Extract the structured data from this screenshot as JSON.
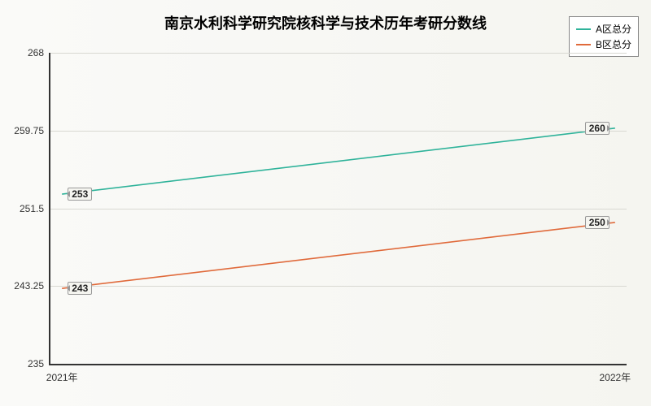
{
  "chart": {
    "type": "line",
    "title": "南京水利科学研究院核科学与技术历年考研分数线",
    "title_fontsize": 18,
    "background_gradient": [
      "#fafaf8",
      "#f5f5f0"
    ],
    "plot_border_color": "#333333",
    "grid_color": "#d8d8d2",
    "x": {
      "categories": [
        "2021年",
        "2022年"
      ],
      "positions_pct": [
        2,
        98
      ]
    },
    "y": {
      "min": 235,
      "max": 268,
      "ticks": [
        235,
        243.25,
        251.5,
        259.75,
        268
      ],
      "tick_labels": [
        "235",
        "243.25",
        "251.5",
        "259.75",
        "268"
      ]
    },
    "series": [
      {
        "name": "A区总分",
        "color": "#2fb39a",
        "line_width": 1.6,
        "values": [
          253,
          260
        ],
        "point_labels": [
          "253",
          "260"
        ]
      },
      {
        "name": "B区总分",
        "color": "#e06a3b",
        "line_width": 1.6,
        "values": [
          243,
          250
        ],
        "point_labels": [
          "243",
          "250"
        ]
      }
    ],
    "legend": {
      "position": "top-right",
      "border_color": "#888888",
      "fontsize": 12
    },
    "label_fontsize": 12
  }
}
